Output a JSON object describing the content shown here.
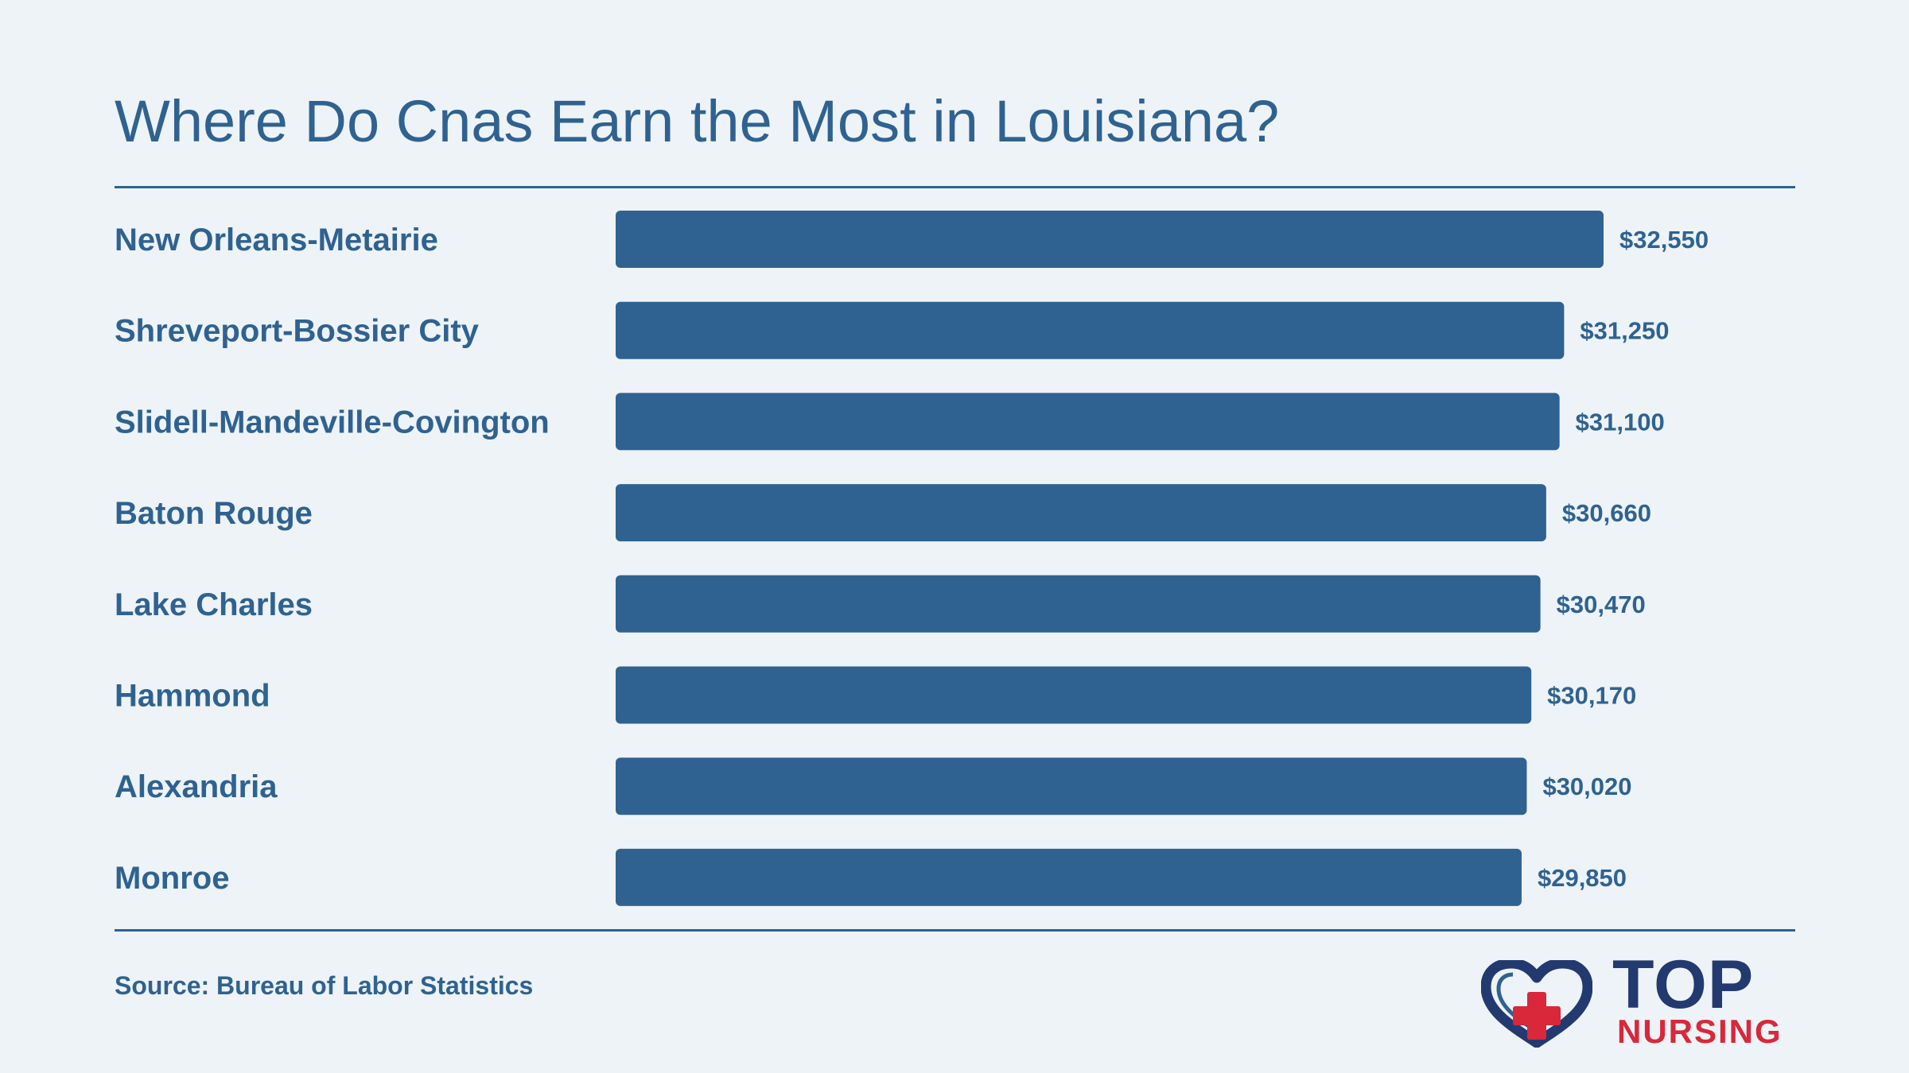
{
  "colors": {
    "background": "#edf3f7",
    "bar": "#2f6290",
    "text": "#2f6290",
    "brand_navy": "#233a70",
    "brand_red": "#d8283a"
  },
  "source": "Source: Bureau of Labor Statistics",
  "logo": {
    "icon": "heart-cross-icon",
    "line1": "TOP",
    "line2": "NURSING"
  },
  "chart_data": {
    "type": "bar",
    "orientation": "horizontal",
    "title": "Where Do Cnas Earn the Most in Louisiana?",
    "xlabel": "",
    "ylabel": "",
    "grid": false,
    "legend": "none",
    "categories": [
      "New Orleans-Metairie",
      "Shreveport-Bossier City",
      "Slidell-Mandeville-Covington",
      "Baton Rouge",
      "Lake Charles",
      "Hammond",
      "Alexandria",
      "Monroe"
    ],
    "values": [
      32550,
      31250,
      31100,
      30660,
      30470,
      30170,
      30020,
      29850
    ],
    "value_labels": [
      "$32,550",
      "$31,250",
      "$31,100",
      "$30,660",
      "$30,470",
      "$30,170",
      "$30,020",
      "$29,850"
    ],
    "xlim": [
      0,
      32550
    ]
  }
}
